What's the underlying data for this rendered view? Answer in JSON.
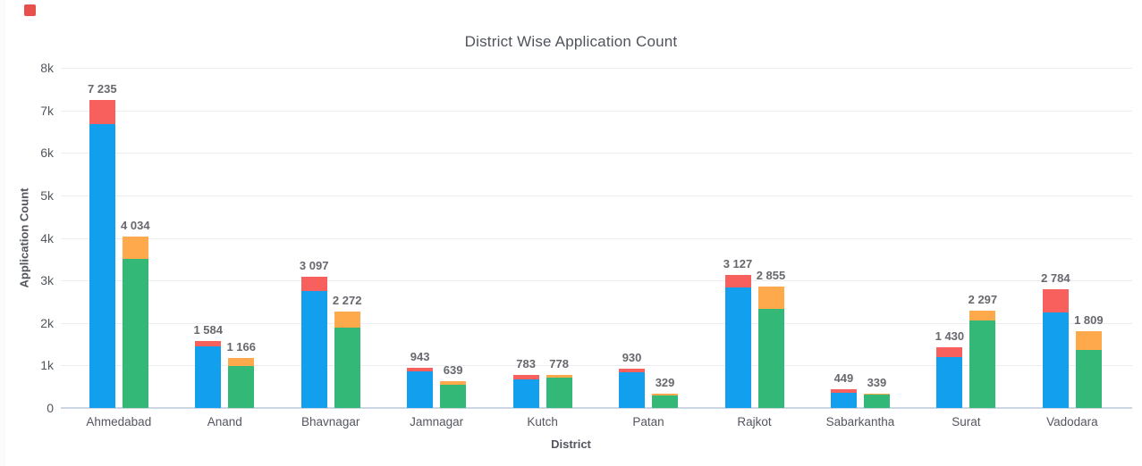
{
  "page": {
    "background": "#ffffff",
    "red_indicator_color": "#e8504e"
  },
  "chart_data": {
    "type": "bar",
    "subtype": "grouped-stacked-columns",
    "title": "District Wise Application Count",
    "xlabel": "District",
    "ylabel": "Application Count",
    "ylim": [
      0,
      8000
    ],
    "grid": true,
    "legend_position": "none",
    "thousands_separator": " ",
    "palette": {
      "blue": "#12a0ee",
      "red": "#f8605d",
      "green": "#33b878",
      "orange": "#ffa94d"
    },
    "yticks": [
      {
        "value": 0,
        "label": "0"
      },
      {
        "value": 1000,
        "label": "1k"
      },
      {
        "value": 2000,
        "label": "2k"
      },
      {
        "value": 3000,
        "label": "3k"
      },
      {
        "value": 4000,
        "label": "4k"
      },
      {
        "value": 5000,
        "label": "5k"
      },
      {
        "value": 6000,
        "label": "6k"
      },
      {
        "value": 7000,
        "label": "7k"
      },
      {
        "value": 8000,
        "label": "8k"
      }
    ],
    "categories": [
      "Ahmedabad",
      "Anand",
      "Bhavnagar",
      "Jamnagar",
      "Kutch",
      "Patan",
      "Rajkot",
      "Sabarkantha",
      "Surat",
      "Vadodara"
    ],
    "districts": [
      {
        "name": "Ahmedabad",
        "bars": [
          {
            "label": "7 235",
            "total": 7235,
            "segments": [
              {
                "color_key": "blue",
                "value": 6680
              },
              {
                "color_key": "red",
                "value": 555
              }
            ]
          },
          {
            "label": "4 034",
            "total": 4034,
            "segments": [
              {
                "color_key": "green",
                "value": 3500
              },
              {
                "color_key": "orange",
                "value": 534
              }
            ]
          }
        ]
      },
      {
        "name": "Anand",
        "bars": [
          {
            "label": "1 584",
            "total": 1584,
            "segments": [
              {
                "color_key": "blue",
                "value": 1440
              },
              {
                "color_key": "red",
                "value": 144
              }
            ]
          },
          {
            "label": "1 166",
            "total": 1166,
            "segments": [
              {
                "color_key": "green",
                "value": 980
              },
              {
                "color_key": "orange",
                "value": 186
              }
            ]
          }
        ]
      },
      {
        "name": "Bhavnagar",
        "bars": [
          {
            "label": "3 097",
            "total": 3097,
            "segments": [
              {
                "color_key": "blue",
                "value": 2760
              },
              {
                "color_key": "red",
                "value": 337
              }
            ]
          },
          {
            "label": "2 272",
            "total": 2272,
            "segments": [
              {
                "color_key": "green",
                "value": 1880
              },
              {
                "color_key": "orange",
                "value": 392
              }
            ]
          }
        ]
      },
      {
        "name": "Jamnagar",
        "bars": [
          {
            "label": "943",
            "total": 943,
            "segments": [
              {
                "color_key": "blue",
                "value": 855
              },
              {
                "color_key": "red",
                "value": 88
              }
            ]
          },
          {
            "label": "639",
            "total": 639,
            "segments": [
              {
                "color_key": "green",
                "value": 555
              },
              {
                "color_key": "orange",
                "value": 84
              }
            ]
          }
        ]
      },
      {
        "name": "Kutch",
        "bars": [
          {
            "label": "783",
            "total": 783,
            "segments": [
              {
                "color_key": "blue",
                "value": 680
              },
              {
                "color_key": "red",
                "value": 103
              }
            ]
          },
          {
            "label": "778",
            "total": 778,
            "segments": [
              {
                "color_key": "green",
                "value": 715
              },
              {
                "color_key": "orange",
                "value": 63
              }
            ]
          }
        ]
      },
      {
        "name": "Patan",
        "bars": [
          {
            "label": "930",
            "total": 930,
            "segments": [
              {
                "color_key": "blue",
                "value": 835
              },
              {
                "color_key": "red",
                "value": 95
              }
            ]
          },
          {
            "label": "329",
            "total": 329,
            "segments": [
              {
                "color_key": "green",
                "value": 290
              },
              {
                "color_key": "orange",
                "value": 39
              }
            ]
          }
        ]
      },
      {
        "name": "Rajkot",
        "bars": [
          {
            "label": "3 127",
            "total": 3127,
            "segments": [
              {
                "color_key": "blue",
                "value": 2840
              },
              {
                "color_key": "red",
                "value": 287
              }
            ]
          },
          {
            "label": "2 855",
            "total": 2855,
            "segments": [
              {
                "color_key": "green",
                "value": 2330
              },
              {
                "color_key": "orange",
                "value": 525
              }
            ]
          }
        ]
      },
      {
        "name": "Sabarkantha",
        "bars": [
          {
            "label": "449",
            "total": 449,
            "segments": [
              {
                "color_key": "blue",
                "value": 360
              },
              {
                "color_key": "red",
                "value": 89
              }
            ]
          },
          {
            "label": "339",
            "total": 339,
            "segments": [
              {
                "color_key": "green",
                "value": 310
              },
              {
                "color_key": "orange",
                "value": 29
              }
            ]
          }
        ]
      },
      {
        "name": "Surat",
        "bars": [
          {
            "label": "1 430",
            "total": 1430,
            "segments": [
              {
                "color_key": "blue",
                "value": 1200
              },
              {
                "color_key": "red",
                "value": 230
              }
            ]
          },
          {
            "label": "2 297",
            "total": 2297,
            "segments": [
              {
                "color_key": "green",
                "value": 2050
              },
              {
                "color_key": "orange",
                "value": 247
              }
            ]
          }
        ]
      },
      {
        "name": "Vadodara",
        "bars": [
          {
            "label": "2 784",
            "total": 2784,
            "segments": [
              {
                "color_key": "blue",
                "value": 2250
              },
              {
                "color_key": "red",
                "value": 534
              }
            ]
          },
          {
            "label": "1 809",
            "total": 1809,
            "segments": [
              {
                "color_key": "green",
                "value": 1370
              },
              {
                "color_key": "orange",
                "value": 439
              }
            ]
          }
        ]
      }
    ]
  }
}
